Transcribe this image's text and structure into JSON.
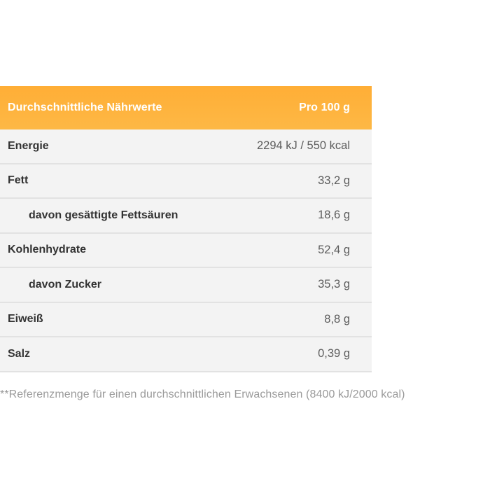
{
  "table": {
    "header_label": "Durchschnittliche Nährwerte",
    "header_value": "Pro 100 g",
    "rows": [
      {
        "label": "Energie",
        "value": "2294 kJ / 550 kcal"
      },
      {
        "label": "Fett",
        "value": "33,2 g"
      },
      {
        "label": "davon gesättigte Fettsäuren",
        "value": "18,6 g"
      },
      {
        "label": "Kohlenhydrate",
        "value": "52,4 g"
      },
      {
        "label": "davon Zucker",
        "value": "35,3 g"
      },
      {
        "label": "Eiweiß",
        "value": "8,8 g"
      },
      {
        "label": "Salz",
        "value": "0,39 g"
      }
    ]
  },
  "footnote": "**Referenzmenge für einen durchschnittlichen Erwachsenen (8400 kJ/2000 kcal)",
  "colors": {
    "header_background": "#fdb03f",
    "header_text": "#ffffff",
    "row_background": "#f3f3f3",
    "row_divider": "#e2e2e2"
  }
}
